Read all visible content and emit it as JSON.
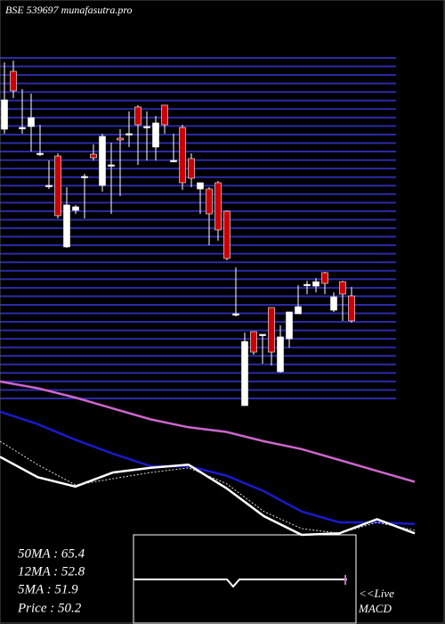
{
  "chart_data": [
    {
      "type": "candlestick",
      "title": "BSE 539697 munafasutra.pro",
      "open": [
        70.14,
        76.15,
        70.32,
        70.42,
        67.64,
        64.31,
        67.36,
        57.93,
        61.72,
        65.24,
        67.55,
        64.31,
        66.44,
        69.21,
        69.68,
        72.45,
        70.42,
        68.29,
        72.64,
        66.9,
        70.32,
        67.09,
        63.94,
        63.94,
        64.59,
        61.63,
        50.99,
        41.46,
        49.14,
        48.86,
        51.64,
        44.98,
        48.4,
        50.99,
        54.04,
        53.86,
        55.25,
        51.36,
        54.32,
        52.84
      ],
      "high": [
        77.08,
        77.26,
        74.3,
        73.84,
        70.6,
        66.9,
        67.64,
        64.13,
        62.28,
        65.51,
        68.57,
        69.68,
        68.75,
        70.14,
        71.99,
        72.64,
        71.99,
        71.53,
        72.64,
        69.68,
        70.6,
        67.64,
        64.59,
        64.13,
        64.77,
        61.72,
        55.8,
        49.05,
        49.14,
        48.86,
        51.64,
        49.79,
        51.18,
        53.95,
        54.41,
        54.69,
        55.34,
        53.21,
        54.41,
        53.77
      ],
      "low": [
        69.68,
        73.38,
        69.68,
        67.83,
        67.36,
        63.94,
        60.89,
        57.84,
        61.35,
        60.89,
        66.9,
        63.66,
        61.35,
        63.2,
        68.29,
        66.44,
        66.9,
        66.9,
        69.68,
        66.72,
        63.85,
        64.13,
        61.35,
        58.11,
        58.58,
        56.54,
        50.71,
        41.46,
        46.74,
        45.81,
        45.63,
        44.89,
        47.48,
        50.99,
        53.03,
        53.21,
        53.03,
        51.18,
        50.25,
        50.07
      ],
      "close": [
        73.19,
        74.12,
        70.32,
        71.34,
        67.64,
        64.31,
        61.17,
        62.28,
        62.09,
        65.24,
        67.18,
        69.4,
        66.44,
        69.03,
        69.68,
        70.6,
        70.42,
        70.79,
        70.6,
        66.9,
        64.59,
        65.05,
        64.59,
        61.35,
        59.69,
        56.73,
        50.99,
        48.12,
        47.01,
        48.86,
        47.01,
        48.59,
        51.18,
        51.73,
        54.04,
        54.32,
        54.14,
        52.75,
        53.03,
        50.25
      ],
      "up_color": "#ffffff",
      "down_color": "#cc0000",
      "ylim": [
        41,
        78
      ]
    },
    {
      "type": "line",
      "ylim": [
        0,
        100
      ],
      "series": [
        {
          "color": "#cc66cc",
          "values": [
            98.3,
            94,
            88,
            81,
            74,
            69,
            66,
            60,
            55,
            48,
            41,
            34
          ]
        },
        {
          "color": "#1a1acc",
          "values": [
            79,
            71,
            61,
            52,
            44,
            44,
            38,
            28,
            15,
            8,
            8,
            7
          ]
        },
        {
          "color": "#ffffff",
          "values": [
            50,
            37,
            31,
            40,
            43,
            45,
            30,
            12,
            0,
            1,
            10,
            1
          ]
        },
        {
          "color": "#dddddd",
          "dashed": true,
          "values": [
            60,
            45,
            32,
            36,
            40,
            43,
            33,
            15,
            4,
            1,
            8,
            3
          ]
        }
      ]
    }
  ],
  "legend": {
    "ma50": "50MA : 65.4",
    "ma12": "12MA : 52.8",
    "ma5": "5MA : 51.9",
    "price": "Price  : 50.2"
  },
  "macd": {
    "live": "<<Live",
    "label": "MACD"
  }
}
